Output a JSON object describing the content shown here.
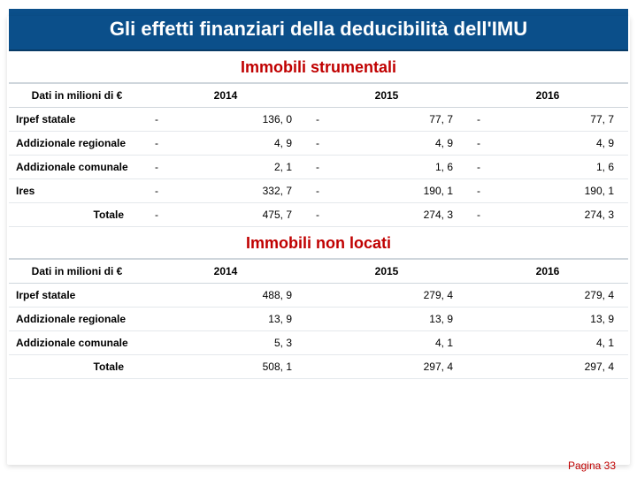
{
  "title": "Gli effetti finanziari della deducibilità dell'IMU",
  "sections": [
    {
      "header": "Immobili strumentali",
      "row_label_head": "Dati in milioni di €",
      "years": [
        "2014",
        "2015",
        "2016"
      ],
      "negative_marker": "-",
      "rows": [
        {
          "label": "Irpef statale",
          "neg": true,
          "values": [
            "136, 0",
            "77, 7",
            "77, 7"
          ]
        },
        {
          "label": "Addizionale regionale",
          "neg": true,
          "values": [
            "4, 9",
            "4, 9",
            "4, 9"
          ]
        },
        {
          "label": "Addizionale comunale",
          "neg": true,
          "values": [
            "2, 1",
            "1, 6",
            "1, 6"
          ]
        },
        {
          "label": "Ires",
          "neg": true,
          "values": [
            "332, 7",
            "190, 1",
            "190, 1"
          ]
        },
        {
          "label": "Totale",
          "indent": true,
          "neg": true,
          "values": [
            "475, 7",
            "274, 3",
            "274, 3"
          ]
        }
      ]
    },
    {
      "header": "Immobili non locati",
      "row_label_head": "Dati in milioni di €",
      "years": [
        "2014",
        "2015",
        "2016"
      ],
      "negative_marker": "",
      "rows": [
        {
          "label": "Irpef statale",
          "neg": false,
          "values": [
            "488, 9",
            "279, 4",
            "279, 4"
          ]
        },
        {
          "label": "Addizionale regionale",
          "neg": false,
          "values": [
            "13, 9",
            "13, 9",
            "13, 9"
          ]
        },
        {
          "label": "Addizionale comunale",
          "neg": false,
          "values": [
            "5, 3",
            "4, 1",
            "4, 1"
          ]
        },
        {
          "label": "Totale",
          "indent": true,
          "neg": false,
          "values": [
            "508, 1",
            "297, 4",
            "297, 4"
          ]
        }
      ]
    }
  ],
  "footer": "Pagina 33",
  "colors": {
    "title_bg": "#0b4f8a",
    "accent_red": "#c00000",
    "grid": "#cfd6dc"
  }
}
